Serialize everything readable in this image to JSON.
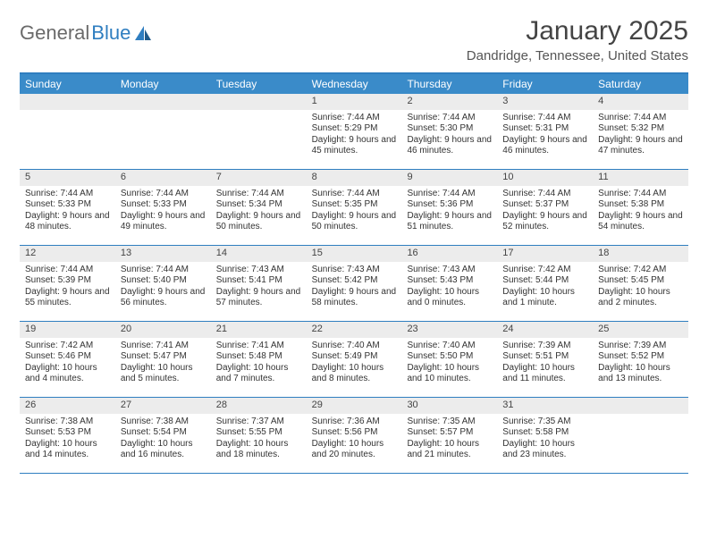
{
  "brand": {
    "part1": "General",
    "part2": "Blue"
  },
  "title": "January 2025",
  "location": "Dandridge, Tennessee, United States",
  "colors": {
    "header_bg": "#3a8bc9",
    "border": "#2f7ec0",
    "daynum_bg": "#ececec",
    "text": "#333333"
  },
  "day_labels": [
    "Sunday",
    "Monday",
    "Tuesday",
    "Wednesday",
    "Thursday",
    "Friday",
    "Saturday"
  ],
  "weeks": [
    [
      {
        "n": "",
        "sr": "",
        "ss": "",
        "dl": ""
      },
      {
        "n": "",
        "sr": "",
        "ss": "",
        "dl": ""
      },
      {
        "n": "",
        "sr": "",
        "ss": "",
        "dl": ""
      },
      {
        "n": "1",
        "sr": "Sunrise: 7:44 AM",
        "ss": "Sunset: 5:29 PM",
        "dl": "Daylight: 9 hours and 45 minutes."
      },
      {
        "n": "2",
        "sr": "Sunrise: 7:44 AM",
        "ss": "Sunset: 5:30 PM",
        "dl": "Daylight: 9 hours and 46 minutes."
      },
      {
        "n": "3",
        "sr": "Sunrise: 7:44 AM",
        "ss": "Sunset: 5:31 PM",
        "dl": "Daylight: 9 hours and 46 minutes."
      },
      {
        "n": "4",
        "sr": "Sunrise: 7:44 AM",
        "ss": "Sunset: 5:32 PM",
        "dl": "Daylight: 9 hours and 47 minutes."
      }
    ],
    [
      {
        "n": "5",
        "sr": "Sunrise: 7:44 AM",
        "ss": "Sunset: 5:33 PM",
        "dl": "Daylight: 9 hours and 48 minutes."
      },
      {
        "n": "6",
        "sr": "Sunrise: 7:44 AM",
        "ss": "Sunset: 5:33 PM",
        "dl": "Daylight: 9 hours and 49 minutes."
      },
      {
        "n": "7",
        "sr": "Sunrise: 7:44 AM",
        "ss": "Sunset: 5:34 PM",
        "dl": "Daylight: 9 hours and 50 minutes."
      },
      {
        "n": "8",
        "sr": "Sunrise: 7:44 AM",
        "ss": "Sunset: 5:35 PM",
        "dl": "Daylight: 9 hours and 50 minutes."
      },
      {
        "n": "9",
        "sr": "Sunrise: 7:44 AM",
        "ss": "Sunset: 5:36 PM",
        "dl": "Daylight: 9 hours and 51 minutes."
      },
      {
        "n": "10",
        "sr": "Sunrise: 7:44 AM",
        "ss": "Sunset: 5:37 PM",
        "dl": "Daylight: 9 hours and 52 minutes."
      },
      {
        "n": "11",
        "sr": "Sunrise: 7:44 AM",
        "ss": "Sunset: 5:38 PM",
        "dl": "Daylight: 9 hours and 54 minutes."
      }
    ],
    [
      {
        "n": "12",
        "sr": "Sunrise: 7:44 AM",
        "ss": "Sunset: 5:39 PM",
        "dl": "Daylight: 9 hours and 55 minutes."
      },
      {
        "n": "13",
        "sr": "Sunrise: 7:44 AM",
        "ss": "Sunset: 5:40 PM",
        "dl": "Daylight: 9 hours and 56 minutes."
      },
      {
        "n": "14",
        "sr": "Sunrise: 7:43 AM",
        "ss": "Sunset: 5:41 PM",
        "dl": "Daylight: 9 hours and 57 minutes."
      },
      {
        "n": "15",
        "sr": "Sunrise: 7:43 AM",
        "ss": "Sunset: 5:42 PM",
        "dl": "Daylight: 9 hours and 58 minutes."
      },
      {
        "n": "16",
        "sr": "Sunrise: 7:43 AM",
        "ss": "Sunset: 5:43 PM",
        "dl": "Daylight: 10 hours and 0 minutes."
      },
      {
        "n": "17",
        "sr": "Sunrise: 7:42 AM",
        "ss": "Sunset: 5:44 PM",
        "dl": "Daylight: 10 hours and 1 minute."
      },
      {
        "n": "18",
        "sr": "Sunrise: 7:42 AM",
        "ss": "Sunset: 5:45 PM",
        "dl": "Daylight: 10 hours and 2 minutes."
      }
    ],
    [
      {
        "n": "19",
        "sr": "Sunrise: 7:42 AM",
        "ss": "Sunset: 5:46 PM",
        "dl": "Daylight: 10 hours and 4 minutes."
      },
      {
        "n": "20",
        "sr": "Sunrise: 7:41 AM",
        "ss": "Sunset: 5:47 PM",
        "dl": "Daylight: 10 hours and 5 minutes."
      },
      {
        "n": "21",
        "sr": "Sunrise: 7:41 AM",
        "ss": "Sunset: 5:48 PM",
        "dl": "Daylight: 10 hours and 7 minutes."
      },
      {
        "n": "22",
        "sr": "Sunrise: 7:40 AM",
        "ss": "Sunset: 5:49 PM",
        "dl": "Daylight: 10 hours and 8 minutes."
      },
      {
        "n": "23",
        "sr": "Sunrise: 7:40 AM",
        "ss": "Sunset: 5:50 PM",
        "dl": "Daylight: 10 hours and 10 minutes."
      },
      {
        "n": "24",
        "sr": "Sunrise: 7:39 AM",
        "ss": "Sunset: 5:51 PM",
        "dl": "Daylight: 10 hours and 11 minutes."
      },
      {
        "n": "25",
        "sr": "Sunrise: 7:39 AM",
        "ss": "Sunset: 5:52 PM",
        "dl": "Daylight: 10 hours and 13 minutes."
      }
    ],
    [
      {
        "n": "26",
        "sr": "Sunrise: 7:38 AM",
        "ss": "Sunset: 5:53 PM",
        "dl": "Daylight: 10 hours and 14 minutes."
      },
      {
        "n": "27",
        "sr": "Sunrise: 7:38 AM",
        "ss": "Sunset: 5:54 PM",
        "dl": "Daylight: 10 hours and 16 minutes."
      },
      {
        "n": "28",
        "sr": "Sunrise: 7:37 AM",
        "ss": "Sunset: 5:55 PM",
        "dl": "Daylight: 10 hours and 18 minutes."
      },
      {
        "n": "29",
        "sr": "Sunrise: 7:36 AM",
        "ss": "Sunset: 5:56 PM",
        "dl": "Daylight: 10 hours and 20 minutes."
      },
      {
        "n": "30",
        "sr": "Sunrise: 7:35 AM",
        "ss": "Sunset: 5:57 PM",
        "dl": "Daylight: 10 hours and 21 minutes."
      },
      {
        "n": "31",
        "sr": "Sunrise: 7:35 AM",
        "ss": "Sunset: 5:58 PM",
        "dl": "Daylight: 10 hours and 23 minutes."
      },
      {
        "n": "",
        "sr": "",
        "ss": "",
        "dl": ""
      }
    ]
  ]
}
